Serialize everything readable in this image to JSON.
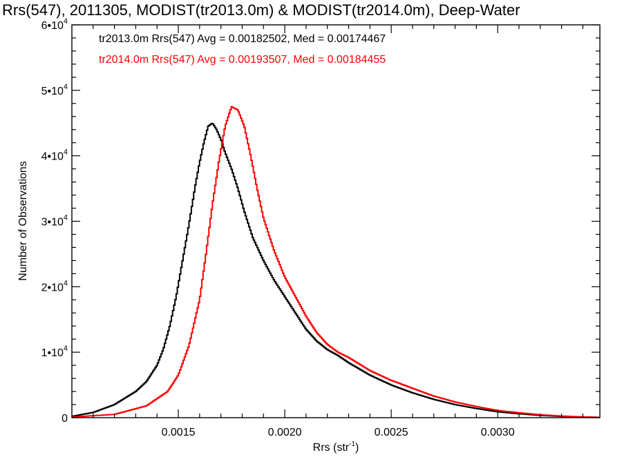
{
  "chart_data": {
    "type": "line",
    "title": "Rrs(547), 2011305, MODIST(tr2013.0m) & MODIST(tr2014.0m), Deep-Water",
    "xlabel": "Rrs (str",
    "xlabel_sup": "-1",
    "xlabel_close": ")",
    "ylabel": "Number of Observations",
    "xlim": [
      0.001,
      0.00348
    ],
    "ylim": [
      0,
      60000
    ],
    "grid": false,
    "x_ticks": [
      0.0015,
      0.002,
      0.0025,
      0.003
    ],
    "x_tick_labels": [
      "0.0015",
      "0.0020",
      "0.0025",
      "0.0030"
    ],
    "y_ticks": [
      0,
      10000,
      20000,
      30000,
      40000,
      50000,
      60000
    ],
    "y_tick_labels": [
      {
        "base": "0",
        "exp": ""
      },
      {
        "base": "1•10",
        "exp": "4"
      },
      {
        "base": "2•10",
        "exp": "4"
      },
      {
        "base": "3•10",
        "exp": "4"
      },
      {
        "base": "4•10",
        "exp": "4"
      },
      {
        "base": "5•10",
        "exp": "4"
      },
      {
        "base": "6•10",
        "exp": "4"
      }
    ],
    "legend_position": "top-left",
    "series": [
      {
        "name": "tr2013.0m",
        "legend": "tr2013.0m Rrs(547) Avg = 0.00182502, Med = 0.00174467",
        "color": "#000000",
        "x": [
          0.001,
          0.0011,
          0.0012,
          0.0013,
          0.00135,
          0.0014,
          0.00143,
          0.00146,
          0.00149,
          0.00152,
          0.00155,
          0.00158,
          0.0016,
          0.00162,
          0.00164,
          0.00166,
          0.00168,
          0.0017,
          0.00172,
          0.00175,
          0.00178,
          0.00181,
          0.00185,
          0.0019,
          0.00195,
          0.002,
          0.00205,
          0.0021,
          0.00215,
          0.0022,
          0.00225,
          0.0023,
          0.0024,
          0.0025,
          0.0026,
          0.0027,
          0.0028,
          0.0029,
          0.003,
          0.0031,
          0.0032,
          0.0033,
          0.0034,
          0.00348
        ],
        "y": [
          200,
          800,
          2000,
          4000,
          5500,
          8000,
          10500,
          14000,
          18500,
          24000,
          29500,
          35500,
          39000,
          42000,
          44500,
          45000,
          44000,
          42500,
          40500,
          38000,
          35000,
          31500,
          27500,
          24000,
          21000,
          18500,
          16000,
          13500,
          11700,
          10400,
          9500,
          8400,
          6500,
          5000,
          3800,
          2800,
          2000,
          1400,
          900,
          600,
          350,
          200,
          100,
          50
        ]
      },
      {
        "name": "tr2014.0m",
        "legend": "tr2014.0m Rrs(547) Avg = 0.00193507, Med = 0.00184455",
        "color": "#ff0000",
        "x": [
          0.001,
          0.0012,
          0.00135,
          0.00145,
          0.0015,
          0.00155,
          0.0016,
          0.00163,
          0.00166,
          0.00169,
          0.00172,
          0.00175,
          0.00178,
          0.00181,
          0.00184,
          0.00187,
          0.0019,
          0.00195,
          0.002,
          0.00205,
          0.0021,
          0.00215,
          0.0022,
          0.00225,
          0.0023,
          0.0024,
          0.0025,
          0.0026,
          0.0027,
          0.0028,
          0.0029,
          0.003,
          0.0031,
          0.0032,
          0.0033,
          0.0034,
          0.00348
        ],
        "y": [
          100,
          500,
          1800,
          4000,
          6500,
          11000,
          18000,
          25000,
          32500,
          39000,
          44500,
          47500,
          47000,
          44500,
          40000,
          35000,
          30500,
          25500,
          21500,
          18500,
          15500,
          13000,
          11200,
          10000,
          9200,
          7200,
          5700,
          4500,
          3300,
          2400,
          1700,
          1100,
          750,
          450,
          250,
          120,
          50
        ]
      }
    ]
  }
}
